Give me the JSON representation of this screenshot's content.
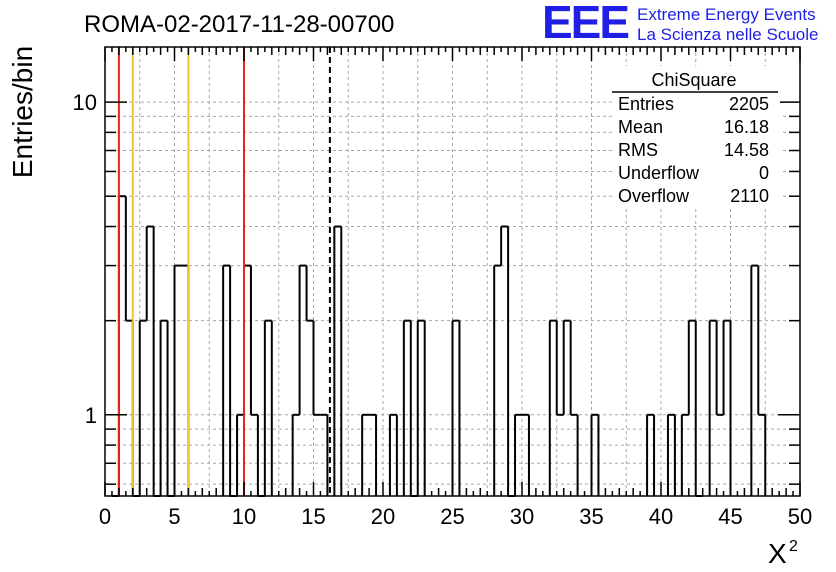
{
  "chart_data": {
    "type": "histogram",
    "title": "ROMA-02-2017-11-28-00700",
    "xlabel": "X",
    "xlabel_superscript": "2",
    "ylabel": "Entries/bin",
    "xlim": [
      0,
      50
    ],
    "ylim": [
      0.55,
      15
    ],
    "yscale": "log",
    "grid": true,
    "bin_width": 0.5,
    "x_ticks": [
      "0",
      "5",
      "10",
      "15",
      "20",
      "25",
      "30",
      "35",
      "40",
      "45",
      "50"
    ],
    "y_ticks": [
      "1",
      "10"
    ],
    "bins": [
      {
        "x": 0.5,
        "y": 0
      },
      {
        "x": 1.0,
        "y": 5
      },
      {
        "x": 1.5,
        "y": 2
      },
      {
        "x": 2.0,
        "y": 0
      },
      {
        "x": 2.5,
        "y": 2
      },
      {
        "x": 3.0,
        "y": 4
      },
      {
        "x": 3.5,
        "y": 0
      },
      {
        "x": 4.0,
        "y": 2
      },
      {
        "x": 4.5,
        "y": 0
      },
      {
        "x": 5.0,
        "y": 3
      },
      {
        "x": 5.5,
        "y": 3
      },
      {
        "x": 8.5,
        "y": 3
      },
      {
        "x": 9.0,
        "y": 0
      },
      {
        "x": 9.5,
        "y": 1
      },
      {
        "x": 10.0,
        "y": 3
      },
      {
        "x": 10.5,
        "y": 1
      },
      {
        "x": 11.0,
        "y": 0
      },
      {
        "x": 11.5,
        "y": 2
      },
      {
        "x": 13.5,
        "y": 1
      },
      {
        "x": 14.0,
        "y": 3
      },
      {
        "x": 14.5,
        "y": 2
      },
      {
        "x": 15.0,
        "y": 1
      },
      {
        "x": 15.5,
        "y": 1
      },
      {
        "x": 16.5,
        "y": 4
      },
      {
        "x": 18.5,
        "y": 1
      },
      {
        "x": 19.0,
        "y": 1
      },
      {
        "x": 20.5,
        "y": 1
      },
      {
        "x": 21.5,
        "y": 2
      },
      {
        "x": 22.0,
        "y": 0
      },
      {
        "x": 22.5,
        "y": 2
      },
      {
        "x": 25.0,
        "y": 2
      },
      {
        "x": 28.0,
        "y": 3
      },
      {
        "x": 28.5,
        "y": 4
      },
      {
        "x": 29.0,
        "y": 0
      },
      {
        "x": 29.5,
        "y": 1
      },
      {
        "x": 30.0,
        "y": 1
      },
      {
        "x": 32.0,
        "y": 2
      },
      {
        "x": 32.5,
        "y": 1
      },
      {
        "x": 33.0,
        "y": 2
      },
      {
        "x": 33.5,
        "y": 1
      },
      {
        "x": 35.0,
        "y": 1
      },
      {
        "x": 39.0,
        "y": 1
      },
      {
        "x": 40.5,
        "y": 1
      },
      {
        "x": 41.5,
        "y": 1
      },
      {
        "x": 42.0,
        "y": 2
      },
      {
        "x": 42.5,
        "y": 0
      },
      {
        "x": 43.5,
        "y": 2
      },
      {
        "x": 44.0,
        "y": 1
      },
      {
        "x": 44.5,
        "y": 2
      },
      {
        "x": 46.5,
        "y": 3
      },
      {
        "x": 47.0,
        "y": 1
      }
    ],
    "vertical_lines": [
      {
        "x": 1.0,
        "color": "#e8251b",
        "style": "solid"
      },
      {
        "x": 2.0,
        "color": "#f2c42a",
        "style": "solid"
      },
      {
        "x": 6.0,
        "color": "#f2c42a",
        "style": "solid"
      },
      {
        "x": 10.0,
        "color": "#e8251b",
        "style": "solid"
      },
      {
        "x": 16.18,
        "color": "#000000",
        "style": "dashed"
      }
    ],
    "stats_box": {
      "title": "ChiSquare",
      "rows": [
        {
          "label": "Entries",
          "value": "2205"
        },
        {
          "label": "Mean",
          "value": "16.18"
        },
        {
          "label": "RMS",
          "value": "14.58"
        },
        {
          "label": "Underflow",
          "value": "0"
        },
        {
          "label": "Overflow",
          "value": "2110"
        }
      ]
    }
  },
  "logo": {
    "mark": "EEE",
    "line1": "Extreme Energy Events",
    "line2": "La Scienza nelle Scuole",
    "color": "#1f1fe6"
  }
}
